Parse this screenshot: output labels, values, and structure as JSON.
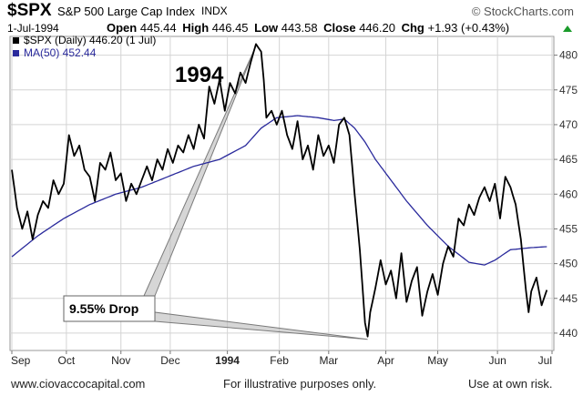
{
  "header": {
    "symbol": "$SPX",
    "name": "S&P 500 Large Cap Index",
    "exchange": "INDX",
    "brand": "© StockCharts.com",
    "date": "1-Jul-1994",
    "open_label": "Open",
    "open": "445.44",
    "high_label": "High",
    "high": "446.45",
    "low_label": "Low",
    "low": "443.58",
    "close_label": "Close",
    "close": "446.20",
    "chg_label": "Chg",
    "chg": "+1.93 (+0.43%)",
    "up_color": "#1a9b2a"
  },
  "footer": {
    "left": "www.ciovaccocapital.com",
    "center": "For illustrative purposes only.",
    "right": "Use at own risk."
  },
  "chart_data": {
    "type": "line",
    "title": "",
    "annotations": [
      {
        "text": "1994"
      },
      {
        "text": "9.55% Drop"
      }
    ],
    "legend": [
      {
        "label": "$SPX (Daily) 446.20 (1 Jul)",
        "color": "#000000"
      },
      {
        "label": "MA(50) 452.44",
        "color": "#2a2a9c"
      }
    ],
    "legend_placement": "top-left",
    "grid": true,
    "ylim": [
      437.5,
      482.7
    ],
    "y_ticks": [
      440,
      445,
      450,
      455,
      460,
      465,
      470,
      475,
      480
    ],
    "x_ticks": [
      "Sep",
      "Oct",
      "Nov",
      "Dec",
      "1994",
      "Feb",
      "Mar",
      "Apr",
      "May",
      "Jun",
      "Jul"
    ],
    "x_tick_positions": [
      0,
      21,
      42,
      61,
      83,
      103,
      122,
      144,
      164,
      187,
      208
    ],
    "price_keypoints": [
      [
        0,
        463.5
      ],
      [
        2,
        458.0
      ],
      [
        4,
        455.0
      ],
      [
        6,
        457.5
      ],
      [
        8,
        453.5
      ],
      [
        10,
        457.0
      ],
      [
        12,
        459.0
      ],
      [
        14,
        458.0
      ],
      [
        16,
        462.0
      ],
      [
        18,
        460.0
      ],
      [
        20,
        461.5
      ],
      [
        22,
        468.5
      ],
      [
        24,
        465.5
      ],
      [
        26,
        467.0
      ],
      [
        28,
        463.5
      ],
      [
        30,
        462.5
      ],
      [
        32,
        459.0
      ],
      [
        34,
        464.5
      ],
      [
        36,
        463.5
      ],
      [
        38,
        466.0
      ],
      [
        40,
        462.0
      ],
      [
        42,
        463.0
      ],
      [
        44,
        459.0
      ],
      [
        46,
        461.5
      ],
      [
        48,
        460.0
      ],
      [
        50,
        462.0
      ],
      [
        52,
        464.0
      ],
      [
        54,
        462.0
      ],
      [
        56,
        465.0
      ],
      [
        58,
        463.5
      ],
      [
        60,
        466.5
      ],
      [
        62,
        464.5
      ],
      [
        64,
        467.0
      ],
      [
        66,
        466.0
      ],
      [
        68,
        468.5
      ],
      [
        70,
        466.5
      ],
      [
        72,
        470.0
      ],
      [
        74,
        468.0
      ],
      [
        76,
        475.5
      ],
      [
        78,
        473.0
      ],
      [
        80,
        476.5
      ],
      [
        82,
        472.0
      ],
      [
        84,
        476.0
      ],
      [
        86,
        474.5
      ],
      [
        88,
        477.5
      ],
      [
        90,
        476.0
      ],
      [
        92,
        479.0
      ],
      [
        94,
        481.6
      ],
      [
        96,
        480.5
      ],
      [
        97,
        476.5
      ],
      [
        98,
        471.0
      ],
      [
        100,
        472.0
      ],
      [
        102,
        470.0
      ],
      [
        104,
        472.0
      ],
      [
        106,
        468.5
      ],
      [
        108,
        466.5
      ],
      [
        110,
        470.5
      ],
      [
        112,
        465.0
      ],
      [
        114,
        467.0
      ],
      [
        116,
        463.5
      ],
      [
        118,
        468.5
      ],
      [
        120,
        465.5
      ],
      [
        122,
        467.0
      ],
      [
        124,
        464.5
      ],
      [
        126,
        470.0
      ],
      [
        128,
        471.0
      ],
      [
        130,
        468.5
      ],
      [
        132,
        460.0
      ],
      [
        134,
        452.0
      ],
      [
        136,
        441.5
      ],
      [
        137,
        439.5
      ],
      [
        138,
        443.0
      ],
      [
        140,
        446.5
      ],
      [
        142,
        450.5
      ],
      [
        144,
        447.0
      ],
      [
        146,
        449.0
      ],
      [
        148,
        445.0
      ],
      [
        150,
        451.5
      ],
      [
        152,
        444.5
      ],
      [
        154,
        447.5
      ],
      [
        156,
        449.5
      ],
      [
        158,
        442.5
      ],
      [
        160,
        446.0
      ],
      [
        162,
        448.5
      ],
      [
        164,
        445.5
      ],
      [
        166,
        450.0
      ],
      [
        168,
        452.5
      ],
      [
        170,
        451.0
      ],
      [
        172,
        456.5
      ],
      [
        174,
        455.5
      ],
      [
        176,
        458.5
      ],
      [
        178,
        457.0
      ],
      [
        180,
        459.5
      ],
      [
        182,
        461.0
      ],
      [
        184,
        459.0
      ],
      [
        186,
        461.5
      ],
      [
        188,
        456.5
      ],
      [
        190,
        462.5
      ],
      [
        192,
        461.0
      ],
      [
        194,
        458.5
      ],
      [
        196,
        453.5
      ],
      [
        198,
        446.0
      ],
      [
        199,
        443.0
      ],
      [
        200,
        446.0
      ],
      [
        202,
        448.0
      ],
      [
        204,
        444.0
      ],
      [
        206,
        446.2
      ]
    ],
    "ma50_keypoints": [
      [
        0,
        451.0
      ],
      [
        10,
        454.0
      ],
      [
        20,
        456.5
      ],
      [
        30,
        458.5
      ],
      [
        40,
        460.0
      ],
      [
        50,
        461.0
      ],
      [
        60,
        462.5
      ],
      [
        70,
        464.0
      ],
      [
        80,
        465.0
      ],
      [
        90,
        467.0
      ],
      [
        96,
        469.5
      ],
      [
        102,
        471.0
      ],
      [
        110,
        471.3
      ],
      [
        118,
        471.0
      ],
      [
        124,
        470.6
      ],
      [
        128,
        470.8
      ],
      [
        132,
        469.5
      ],
      [
        136,
        467.5
      ],
      [
        140,
        465.0
      ],
      [
        146,
        462.0
      ],
      [
        152,
        459.0
      ],
      [
        160,
        455.5
      ],
      [
        168,
        452.5
      ],
      [
        176,
        450.2
      ],
      [
        182,
        449.8
      ],
      [
        186,
        450.5
      ],
      [
        192,
        452.0
      ],
      [
        200,
        452.3
      ],
      [
        206,
        452.44
      ]
    ]
  }
}
